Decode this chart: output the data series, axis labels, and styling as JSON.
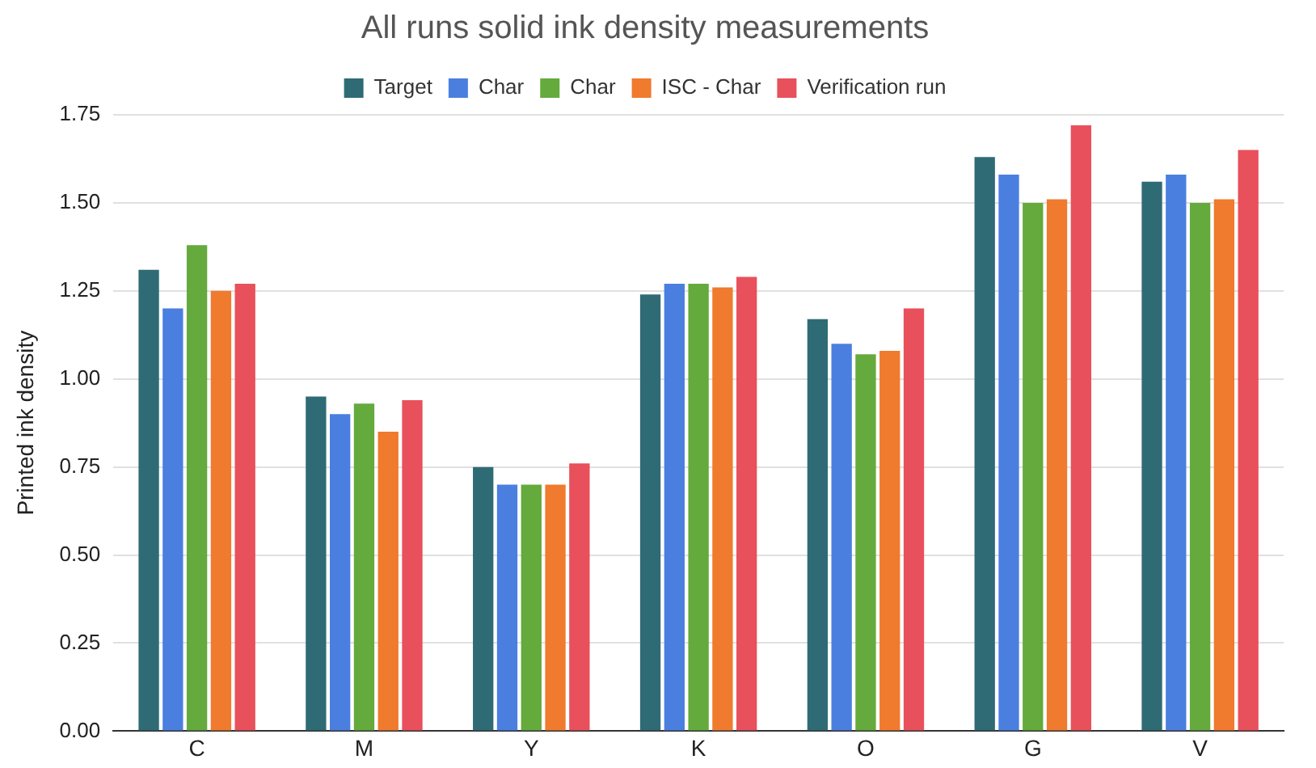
{
  "chart_data": {
    "type": "bar",
    "title": "All runs solid ink density measurements",
    "ylabel": "Printed ink density",
    "categories": [
      "C",
      "M",
      "Y",
      "K",
      "O",
      "G",
      "V"
    ],
    "series": [
      {
        "name": "Target",
        "color": "#2f6b75",
        "values": [
          1.31,
          0.95,
          0.75,
          1.24,
          1.17,
          1.63,
          1.56
        ]
      },
      {
        "name": "Char",
        "color": "#4a7fe0",
        "values": [
          1.2,
          0.9,
          0.7,
          1.27,
          1.1,
          1.58,
          1.58
        ]
      },
      {
        "name": "Char",
        "color": "#64aa3c",
        "values": [
          1.38,
          0.93,
          0.7,
          1.27,
          1.07,
          1.5,
          1.5
        ]
      },
      {
        "name": "ISC - Char",
        "color": "#f07a2e",
        "values": [
          1.25,
          0.85,
          0.7,
          1.26,
          1.08,
          1.51,
          1.51
        ]
      },
      {
        "name": "Verification run",
        "color": "#e8505b",
        "values": [
          1.27,
          0.94,
          0.76,
          1.29,
          1.2,
          1.72,
          1.65
        ]
      }
    ],
    "ylim": [
      0,
      1.75
    ],
    "yticks": [
      {
        "value": 0,
        "label": "0.00"
      },
      {
        "value": 0.25,
        "label": "0.25"
      },
      {
        "value": 0.5,
        "label": "0.50"
      },
      {
        "value": 0.75,
        "label": "0.75"
      },
      {
        "value": 1,
        "label": "1.00"
      },
      {
        "value": 1.25,
        "label": "1.25"
      },
      {
        "value": 1.5,
        "label": "1.50"
      },
      {
        "value": 1.75,
        "label": "1.75"
      }
    ],
    "grid": "y",
    "legend": "top"
  }
}
